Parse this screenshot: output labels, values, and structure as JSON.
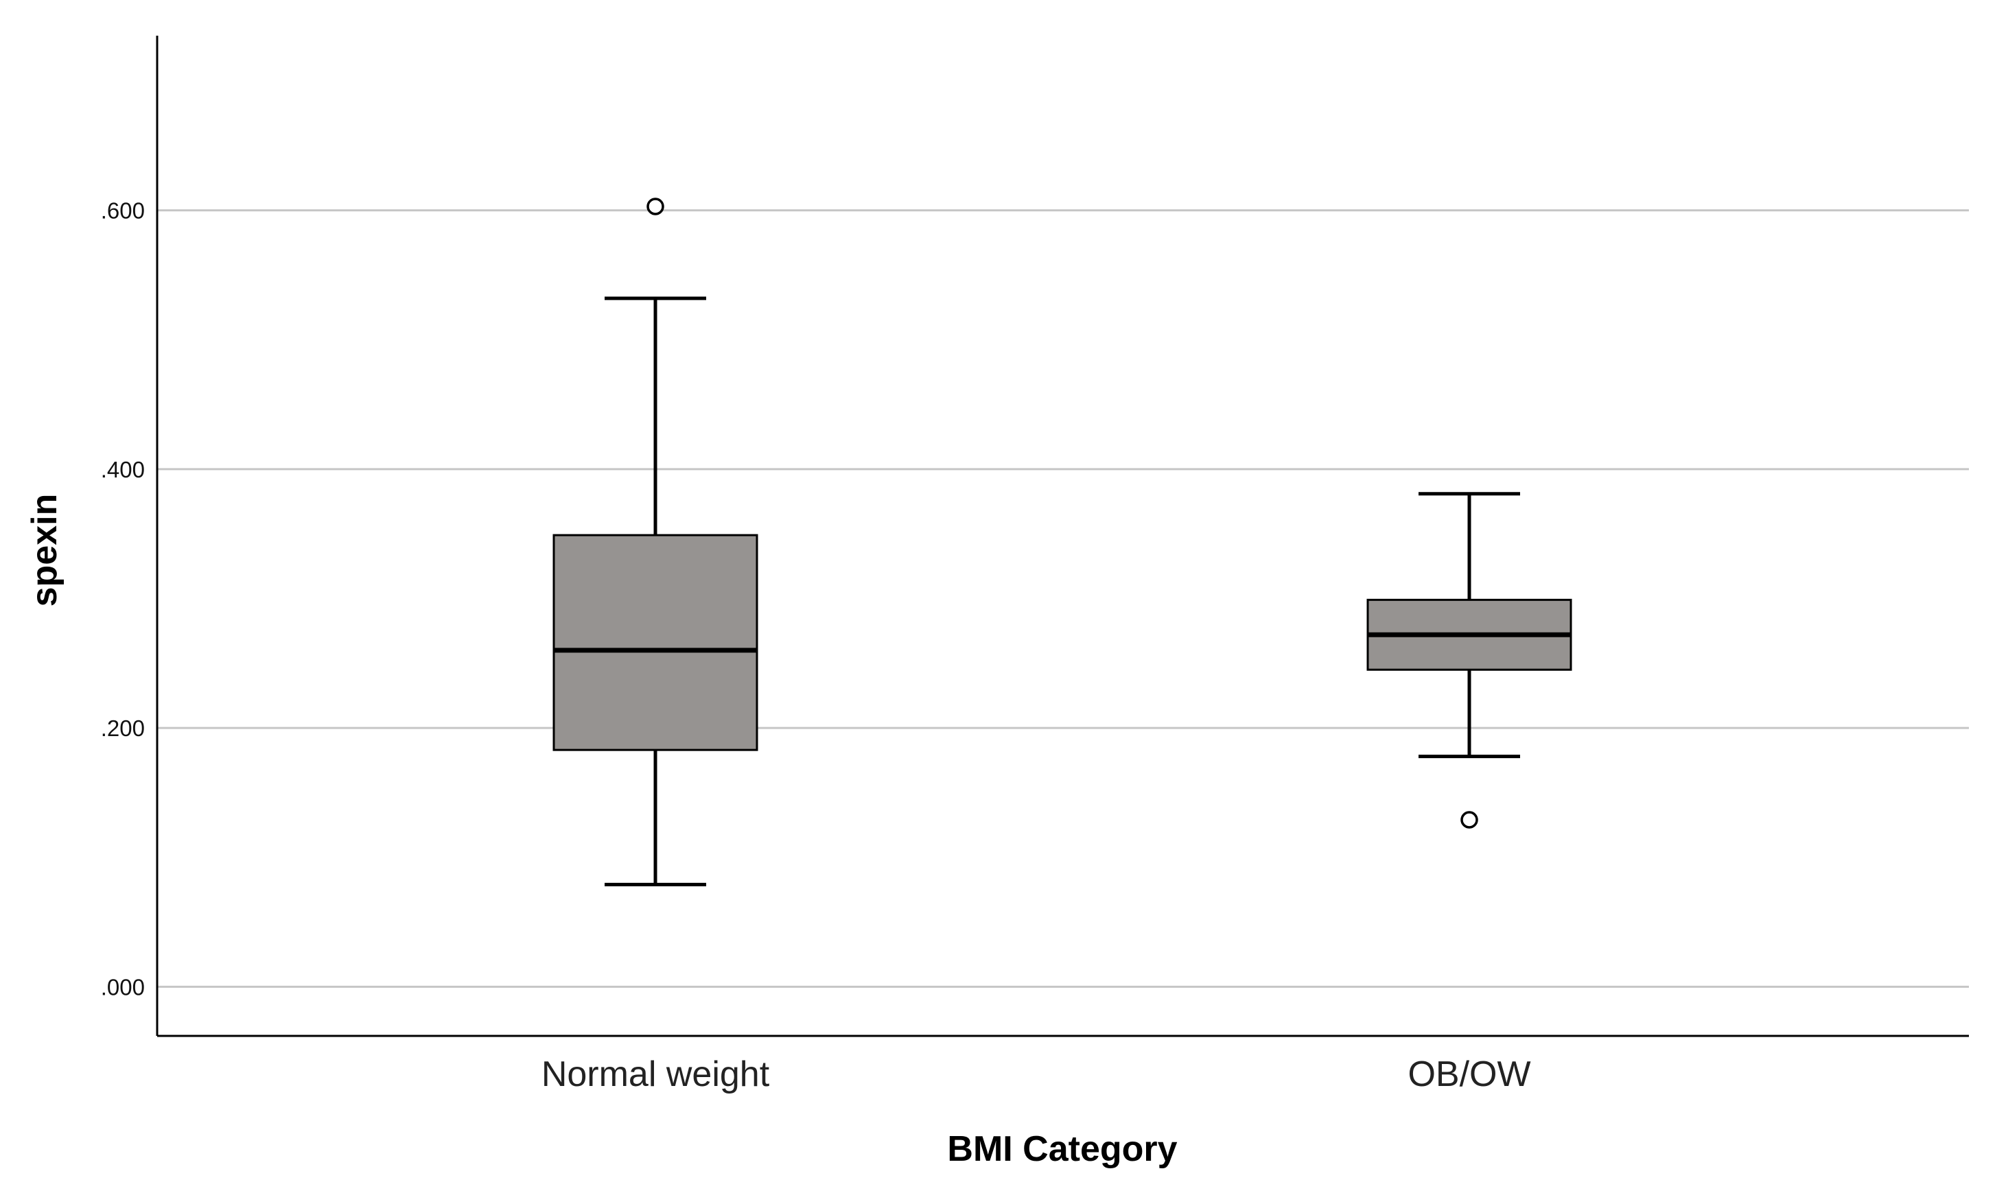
{
  "chart_data": {
    "type": "box",
    "title": "",
    "xlabel": "BMI Category",
    "ylabel": "spexin",
    "ylim": [
      -0.038,
      0.735
    ],
    "yticks": [
      0.0,
      0.2,
      0.4,
      0.6
    ],
    "ytick_labels": [
      ".000",
      ".200",
      ".400",
      ".600"
    ],
    "grid": true,
    "legend": "none",
    "categories": [
      "Normal weight",
      "OB/OW"
    ],
    "boxes": [
      {
        "category": "Normal weight",
        "whisker_low": 0.079,
        "q1": 0.183,
        "median": 0.26,
        "q3": 0.349,
        "whisker_high": 0.532,
        "outliers": [
          0.603
        ]
      },
      {
        "category": "OB/OW",
        "whisker_low": 0.178,
        "q1": 0.245,
        "median": 0.272,
        "q3": 0.299,
        "whisker_high": 0.381,
        "outliers": [
          0.129
        ]
      }
    ],
    "colors": {
      "box_fill": "#969391",
      "box_stroke": "#000000",
      "gridline": "#c6c6c6",
      "axis": "#000000",
      "outlier_fill": "#ffffff"
    }
  }
}
